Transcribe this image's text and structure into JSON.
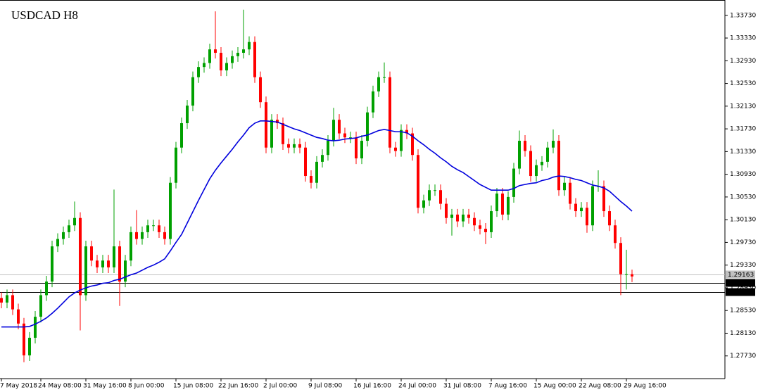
{
  "chart_data": {
    "type": "candlestick",
    "title": "USDCAD H8",
    "title_color": "#8b1a1a",
    "up_color": "#00a000",
    "down_color": "#ff0000",
    "categories": [
      "7 May 2018",
      null,
      null,
      null,
      null,
      null,
      null,
      "24 May 08:00",
      null,
      null,
      null,
      null,
      null,
      null,
      null,
      "31 May 16:00",
      null,
      null,
      null,
      null,
      null,
      null,
      null,
      "8 Jun 00:00",
      null,
      null,
      null,
      null,
      null,
      null,
      null,
      "15 Jun 08:00",
      null,
      null,
      null,
      null,
      null,
      null,
      null,
      "22 Jun 16:00",
      null,
      null,
      null,
      null,
      null,
      null,
      null,
      "2 Jul 00:00",
      null,
      null,
      null,
      null,
      null,
      null,
      null,
      "9 Jul 08:00",
      null,
      null,
      null,
      null,
      null,
      null,
      null,
      "16 Jul 16:00",
      null,
      null,
      null,
      null,
      null,
      null,
      null,
      "24 Jul 00:00",
      null,
      null,
      null,
      null,
      null,
      null,
      null,
      "31 Jul 08:00",
      null,
      null,
      null,
      null,
      null,
      null,
      null,
      "7 Aug 16:00",
      null,
      null,
      null,
      null,
      null,
      null,
      null,
      "15 Aug 00:00",
      null,
      null,
      null,
      null,
      null,
      null,
      null,
      "22 Aug 08:00",
      null,
      null,
      null,
      null,
      null,
      null,
      null,
      "29 Aug 16:00",
      null
    ],
    "open": [
      1.2875,
      1.2867,
      1.288,
      1.2855,
      1.283,
      1.2774,
      1.2805,
      1.2842,
      1.288,
      1.2904,
      1.2966,
      1.2979,
      1.2991,
      1.3003,
      1.3016,
      1.288,
      1.2966,
      1.2941,
      1.2929,
      1.2941,
      1.2929,
      1.2966,
      1.2904,
      1.2941,
      1.2991,
      1.2979,
      1.2991,
      1.3003,
      1.3003,
      1.2991,
      1.2979,
      1.3078,
      1.314,
      1.3183,
      1.3214,
      1.3264,
      1.3282,
      1.3289,
      1.3313,
      1.3307,
      1.3276,
      1.3289,
      1.3301,
      1.3307,
      1.3313,
      1.3326,
      1.3264,
      1.322,
      1.314,
      1.3189,
      1.3183,
      1.3146,
      1.314,
      1.3146,
      1.314,
      1.309,
      1.3078,
      1.3115,
      1.3127,
      1.3152,
      1.3189,
      1.3165,
      1.3158,
      1.3158,
      1.3121,
      1.3152,
      1.3202,
      1.3239,
      1.3264,
      1.3264,
      1.314,
      1.3134,
      1.3171,
      1.3165,
      1.3127,
      1.3034,
      1.3047,
      1.3065,
      1.3065,
      1.3041,
      1.3016,
      1.3022,
      1.301,
      1.3022,
      1.3016,
      1.3003,
      1.2997,
      1.2991,
      1.3028,
      1.3059,
      1.3022,
      1.3053,
      1.3103,
      1.3152,
      1.3134,
      1.309,
      1.3109,
      1.3115,
      1.314,
      1.3152,
      1.3065,
      1.3078,
      1.3041,
      1.3028,
      1.3034,
      1.3003,
      1.3072,
      1.3072,
      1.3028,
      1.3003,
      1.2972,
      1.2917,
      1.2917
    ],
    "high": [
      1.2885,
      1.289,
      1.289,
      1.2865,
      1.284,
      1.2815,
      1.2852,
      1.289,
      1.2914,
      1.2976,
      1.2989,
      1.3001,
      1.3013,
      1.3045,
      1.3026,
      1.2976,
      1.2976,
      1.2951,
      1.2951,
      1.2951,
      1.3066,
      1.2976,
      1.2951,
      1.3001,
      1.303,
      1.3001,
      1.3013,
      1.3013,
      1.3013,
      1.3001,
      1.3088,
      1.315,
      1.3193,
      1.3224,
      1.3274,
      1.3292,
      1.3299,
      1.3323,
      1.338,
      1.3317,
      1.3299,
      1.3311,
      1.3317,
      1.3383,
      1.3336,
      1.3336,
      1.3274,
      1.323,
      1.3199,
      1.3199,
      1.3193,
      1.3156,
      1.3156,
      1.3156,
      1.315,
      1.31,
      1.3125,
      1.3137,
      1.3162,
      1.321,
      1.3199,
      1.3175,
      1.3168,
      1.3168,
      1.3162,
      1.3212,
      1.3249,
      1.3274,
      1.329,
      1.3274,
      1.315,
      1.3181,
      1.3181,
      1.3175,
      1.3137,
      1.3057,
      1.3075,
      1.3075,
      1.3075,
      1.3051,
      1.3032,
      1.3032,
      1.3032,
      1.3032,
      1.3026,
      1.3013,
      1.3007,
      1.3038,
      1.3069,
      1.3069,
      1.3063,
      1.3113,
      1.317,
      1.3162,
      1.3144,
      1.3119,
      1.3125,
      1.315,
      1.3172,
      1.3162,
      1.3088,
      1.3088,
      1.3051,
      1.3044,
      1.3044,
      1.3082,
      1.31,
      1.3082,
      1.3038,
      1.3013,
      1.2982,
      1.296,
      1.2925
    ],
    "low": [
      1.2857,
      1.2857,
      1.2845,
      1.282,
      1.2762,
      1.2764,
      1.2795,
      1.2832,
      1.287,
      1.2894,
      1.2956,
      1.2969,
      1.2981,
      1.2993,
      1.2818,
      1.287,
      1.2931,
      1.2919,
      1.2919,
      1.2919,
      1.2919,
      1.2861,
      1.2894,
      1.2931,
      1.2969,
      1.2969,
      1.2981,
      1.2993,
      1.2981,
      1.2969,
      1.2969,
      1.3068,
      1.313,
      1.3173,
      1.3204,
      1.3254,
      1.3272,
      1.3279,
      1.3297,
      1.3266,
      1.3266,
      1.3279,
      1.3291,
      1.3297,
      1.3303,
      1.3254,
      1.321,
      1.313,
      1.313,
      1.3173,
      1.3136,
      1.313,
      1.313,
      1.313,
      1.308,
      1.3068,
      1.3068,
      1.3105,
      1.3117,
      1.3142,
      1.3155,
      1.3148,
      1.3148,
      1.3111,
      1.3111,
      1.3142,
      1.3192,
      1.3229,
      1.3254,
      1.313,
      1.3124,
      1.3124,
      1.3155,
      1.3117,
      1.3024,
      1.3024,
      1.3037,
      1.3055,
      1.3031,
      1.3006,
      1.2985,
      1.3,
      1.3,
      1.3006,
      1.2993,
      1.2987,
      1.297,
      1.2981,
      1.3018,
      1.3012,
      1.3012,
      1.3043,
      1.3093,
      1.3124,
      1.308,
      1.308,
      1.3099,
      1.3105,
      1.313,
      1.3055,
      1.3055,
      1.3031,
      1.3018,
      1.3018,
      1.299,
      1.2993,
      1.3062,
      1.3018,
      1.2993,
      1.2962,
      1.288,
      1.289,
      1.2903
    ],
    "close": [
      1.2867,
      1.288,
      1.2855,
      1.283,
      1.2774,
      1.2805,
      1.2842,
      1.288,
      1.2904,
      1.2966,
      1.2979,
      1.2991,
      1.3003,
      1.3016,
      1.288,
      1.2966,
      1.2941,
      1.2929,
      1.2941,
      1.2929,
      1.2966,
      1.2904,
      1.2941,
      1.2991,
      1.2979,
      1.2991,
      1.3003,
      1.3003,
      1.2991,
      1.2979,
      1.3078,
      1.314,
      1.3183,
      1.3214,
      1.3264,
      1.3282,
      1.3289,
      1.3313,
      1.3307,
      1.3276,
      1.3289,
      1.3301,
      1.3307,
      1.3313,
      1.3326,
      1.3264,
      1.322,
      1.314,
      1.3189,
      1.3183,
      1.3146,
      1.314,
      1.3146,
      1.314,
      1.309,
      1.3078,
      1.3115,
      1.3127,
      1.3152,
      1.3189,
      1.3165,
      1.3158,
      1.3158,
      1.3121,
      1.3152,
      1.3202,
      1.3239,
      1.3264,
      1.3264,
      1.314,
      1.3134,
      1.3171,
      1.3165,
      1.3127,
      1.3034,
      1.3047,
      1.3065,
      1.3065,
      1.3041,
      1.3016,
      1.3022,
      1.301,
      1.3022,
      1.3016,
      1.3003,
      1.2997,
      1.2991,
      1.3028,
      1.3059,
      1.3022,
      1.3053,
      1.3103,
      1.3152,
      1.3134,
      1.309,
      1.3109,
      1.3115,
      1.314,
      1.3152,
      1.3065,
      1.3078,
      1.3041,
      1.3028,
      1.3034,
      1.3003,
      1.3072,
      1.3072,
      1.3028,
      1.3003,
      1.2972,
      1.2917,
      1.2917,
      1.2913
    ],
    "ma": {
      "color": "#0000dd",
      "values": [
        1.2824,
        1.2824,
        1.2824,
        1.2824,
        1.2824,
        1.2825,
        1.2829,
        1.2834,
        1.284,
        1.2848,
        1.2857,
        1.2867,
        1.2877,
        1.2884,
        1.2889,
        1.2893,
        1.2896,
        1.2898,
        1.2901,
        1.2902,
        1.2906,
        1.2908,
        1.2912,
        1.2916,
        1.2919,
        1.2924,
        1.2929,
        1.2933,
        1.2938,
        1.2944,
        1.2958,
        1.2973,
        1.2987,
        1.3007,
        1.3027,
        1.3047,
        1.3066,
        1.3085,
        1.31,
        1.3113,
        1.3125,
        1.3137,
        1.315,
        1.3162,
        1.3175,
        1.3183,
        1.3187,
        1.3187,
        1.3186,
        1.3185,
        1.3181,
        1.3177,
        1.3173,
        1.317,
        1.3166,
        1.3162,
        1.3158,
        1.3156,
        1.3153,
        1.3152,
        1.3153,
        1.3155,
        1.3156,
        1.3157,
        1.316,
        1.3162,
        1.3166,
        1.317,
        1.3172,
        1.317,
        1.3168,
        1.3168,
        1.3166,
        1.316,
        1.3152,
        1.3145,
        1.3137,
        1.313,
        1.3122,
        1.3115,
        1.3107,
        1.3101,
        1.3096,
        1.3089,
        1.3082,
        1.3075,
        1.307,
        1.3065,
        1.3065,
        1.3065,
        1.3065,
        1.3068,
        1.3073,
        1.3075,
        1.3077,
        1.3078,
        1.3082,
        1.3084,
        1.3088,
        1.309,
        1.3089,
        1.3087,
        1.3084,
        1.3082,
        1.3078,
        1.3074,
        1.3072,
        1.3069,
        1.3063,
        1.3054,
        1.3045,
        1.3037,
        1.3028
      ]
    },
    "ylim": [
      1.2733,
      1.34
    ],
    "yticks": [
      {
        "value": 1.2773,
        "label": "1.27730"
      },
      {
        "value": 1.2813,
        "label": "1.28130"
      },
      {
        "value": 1.2853,
        "label": "1.28530"
      },
      {
        "value": 1.2893,
        "label": "1.28930"
      },
      {
        "value": 1.2933,
        "label": "1.29330"
      },
      {
        "value": 1.2973,
        "label": "1.29730"
      },
      {
        "value": 1.3013,
        "label": "1.30130"
      },
      {
        "value": 1.3053,
        "label": "1.30530"
      },
      {
        "value": 1.3093,
        "label": "1.30930"
      },
      {
        "value": 1.3133,
        "label": "1.31330"
      },
      {
        "value": 1.3173,
        "label": "1.31730"
      },
      {
        "value": 1.3213,
        "label": "1.32130"
      },
      {
        "value": 1.3253,
        "label": "1.32530"
      },
      {
        "value": 1.3293,
        "label": "1.32930"
      },
      {
        "value": 1.3333,
        "label": "1.33330"
      },
      {
        "value": 1.3373,
        "label": "1.33730"
      }
    ],
    "price_lines": [
      {
        "value": 1.29163,
        "label": "1.29163",
        "color": "#c0c0c0"
      },
      {
        "value": 1.29019,
        "label": "1.29019",
        "color": "#000000"
      },
      {
        "value": 1.28858,
        "label": "1.28858",
        "color": "#000000"
      }
    ]
  }
}
